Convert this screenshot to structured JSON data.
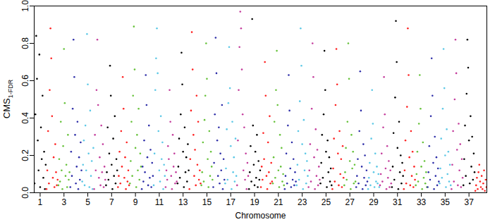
{
  "chart_data": {
    "type": "scatter",
    "x_label": "Chromosome",
    "y_label": "CMS",
    "y_label_subscript": "1-FDR",
    "ylim": [
      0,
      1
    ],
    "yticks": [
      {
        "value": 0,
        "label": "0.0"
      },
      {
        "value": 0.2,
        "label": "0.2"
      },
      {
        "value": 0.4,
        "label": "0.4"
      },
      {
        "value": 0.6,
        "label": "0.6"
      },
      {
        "value": 0.8,
        "label": "0.8"
      },
      {
        "value": 1,
        "label": "1.0"
      }
    ],
    "grid": false,
    "marker": "dot",
    "categories": [
      "1",
      null,
      "3",
      null,
      "5",
      null,
      "7",
      null,
      "9",
      null,
      "11",
      null,
      "13",
      null,
      "15",
      null,
      "17",
      null,
      "19",
      null,
      "21",
      null,
      "23",
      null,
      "25",
      null,
      "27",
      null,
      "29",
      null,
      "31",
      null,
      "33",
      null,
      "35",
      null,
      "37",
      null
    ],
    "colors": [
      "#000000",
      "#ff2020",
      "#66c23a",
      "#2e2ea8",
      "#5cc8e6",
      "#c43c9c",
      "#000000",
      "#ff2020",
      "#66c23a",
      "#2e2ea8",
      "#5cc8e6",
      "#c43c9c",
      "#000000",
      "#ff2020",
      "#66c23a",
      "#2e2ea8",
      "#5cc8e6",
      "#c43c9c",
      "#000000",
      "#ff2020",
      "#66c23a",
      "#2e2ea8",
      "#5cc8e6",
      "#c43c9c",
      "#000000",
      "#ff2020",
      "#66c23a",
      "#2e2ea8",
      "#5cc8e6",
      "#c43c9c",
      "#000000",
      "#ff2020",
      "#66c23a",
      "#2e2ea8",
      "#5cc8e6",
      "#c43c9c",
      "#000000",
      "#ff2020"
    ],
    "values": [
      [
        0.05,
        0.42,
        0.84,
        0.61,
        0.28,
        0.12,
        0.74,
        0.03,
        0.35,
        0.18,
        0.52,
        0.08,
        0.22,
        0.02,
        0.15
      ],
      [
        0.02,
        0.12,
        0.33,
        0.05,
        0.55,
        0.88,
        0.72,
        0.41,
        0.08,
        0.19,
        0.03,
        0.26,
        0.11,
        0.04,
        0.07
      ],
      [
        0.04,
        0.18,
        0.06,
        0.38,
        0.12,
        0.02,
        0.25,
        0.77,
        0.48,
        0.09,
        0.15,
        0.03,
        0.31,
        0.07,
        0.11
      ],
      [
        0.03,
        0.22,
        0.09,
        0.45,
        0.82,
        0.62,
        0.31,
        0.05,
        0.14,
        0.38,
        0.02,
        0.19,
        0.07,
        0.27,
        0.12
      ],
      [
        0.06,
        0.15,
        0.28,
        0.04,
        0.36,
        0.12,
        0.85,
        0.58,
        0.21,
        0.03,
        0.44,
        0.09,
        0.17,
        0.02,
        0.24
      ],
      [
        0.02,
        0.31,
        0.12,
        0.55,
        0.82,
        0.47,
        0.08,
        0.19,
        0.04,
        0.36,
        0.11,
        0.26,
        0.03,
        0.14,
        0.07
      ],
      [
        0.04,
        0.11,
        0.35,
        0.07,
        0.21,
        0.68,
        0.52,
        0.15,
        0.02,
        0.29,
        0.09,
        0.41,
        0.05,
        0.18,
        0.12
      ],
      [
        0.03,
        0.09,
        0.22,
        0.05,
        0.33,
        0.14,
        0.62,
        0.45,
        0.08,
        0.19,
        0.02,
        0.27,
        0.06,
        0.12,
        0.04
      ],
      [
        0.05,
        0.17,
        0.38,
        0.09,
        0.52,
        0.89,
        0.66,
        0.24,
        0.03,
        0.31,
        0.12,
        0.45,
        0.07,
        0.21,
        0.14
      ],
      [
        0.02,
        0.14,
        0.06,
        0.28,
        0.11,
        0.63,
        0.47,
        0.19,
        0.04,
        0.36,
        0.08,
        0.23,
        0.03,
        0.16,
        0.09
      ],
      [
        0.04,
        0.21,
        0.55,
        0.72,
        0.88,
        0.64,
        0.33,
        0.12,
        0.06,
        0.41,
        0.18,
        0.27,
        0.02,
        0.15,
        0.09
      ],
      [
        0.03,
        0.12,
        0.07,
        0.25,
        0.18,
        0.55,
        0.38,
        0.09,
        0.02,
        0.31,
        0.14,
        0.21,
        0.05,
        0.11,
        0.06
      ],
      [
        0.05,
        0.14,
        0.29,
        0.08,
        0.42,
        0.75,
        0.58,
        0.22,
        0.03,
        0.35,
        0.11,
        0.19,
        0.06,
        0.26,
        0.12
      ],
      [
        0.02,
        0.18,
        0.44,
        0.86,
        0.66,
        0.31,
        0.09,
        0.23,
        0.04,
        0.52,
        0.15,
        0.38,
        0.07,
        0.12,
        0.05
      ],
      [
        0.04,
        0.11,
        0.27,
        0.06,
        0.39,
        0.52,
        0.8,
        0.61,
        0.18,
        0.03,
        0.33,
        0.09,
        0.22,
        0.14,
        0.07
      ],
      [
        0.03,
        0.16,
        0.42,
        0.83,
        0.64,
        0.28,
        0.09,
        0.35,
        0.05,
        0.21,
        0.12,
        0.47,
        0.02,
        0.18,
        0.07
      ],
      [
        0.05,
        0.13,
        0.34,
        0.07,
        0.48,
        0.78,
        0.56,
        0.25,
        0.02,
        0.38,
        0.11,
        0.19,
        0.06,
        0.29,
        0.09
      ],
      [
        0.04,
        0.28,
        0.55,
        0.78,
        0.97,
        0.88,
        0.66,
        0.42,
        0.12,
        0.35,
        0.07,
        0.21,
        0.02,
        0.16,
        0.09
      ],
      [
        0.02,
        0.11,
        0.25,
        0.06,
        0.93,
        0.36,
        0.15,
        0.04,
        0.22,
        0.08,
        0.31,
        0.03,
        0.17,
        0.07,
        0.12
      ],
      [
        0.03,
        0.14,
        0.07,
        0.32,
        0.18,
        0.7,
        0.52,
        0.09,
        0.02,
        0.27,
        0.11,
        0.41,
        0.05,
        0.16,
        0.06
      ],
      [
        0.05,
        0.19,
        0.38,
        0.08,
        0.55,
        0.76,
        0.47,
        0.12,
        0.03,
        0.31,
        0.14,
        0.24,
        0.06,
        0.1,
        0.04
      ],
      [
        0.02,
        0.09,
        0.21,
        0.05,
        0.36,
        0.63,
        0.44,
        0.13,
        0.03,
        0.27,
        0.07,
        0.18,
        0.04,
        0.11,
        0.06
      ],
      [
        0.04,
        0.15,
        0.33,
        0.07,
        0.49,
        0.88,
        0.68,
        0.26,
        0.02,
        0.39,
        0.12,
        0.21,
        0.05,
        0.17,
        0.09
      ],
      [
        0.03,
        0.12,
        0.26,
        0.06,
        0.45,
        0.8,
        0.62,
        0.19,
        0.02,
        0.34,
        0.09,
        0.23,
        0.04,
        0.14,
        0.07
      ],
      [
        0.05,
        0.16,
        0.31,
        0.08,
        0.42,
        0.76,
        0.55,
        0.22,
        0.03,
        0.28,
        0.11,
        0.19,
        0.06,
        0.13,
        0.04
      ],
      [
        0.02,
        0.13,
        0.29,
        0.06,
        0.47,
        0.77,
        0.58,
        0.21,
        0.04,
        0.33,
        0.1,
        0.18,
        0.03,
        0.25,
        0.08
      ],
      [
        0.04,
        0.11,
        0.24,
        0.07,
        0.38,
        0.8,
        0.61,
        0.17,
        0.02,
        0.31,
        0.13,
        0.22,
        0.05,
        0.15,
        0.06
      ],
      [
        0.03,
        0.09,
        0.18,
        0.05,
        0.33,
        0.65,
        0.44,
        0.14,
        0.02,
        0.26,
        0.08,
        0.2,
        0.04,
        0.12,
        0.06
      ],
      [
        0.02,
        0.08,
        0.16,
        0.04,
        0.29,
        0.55,
        0.37,
        0.11,
        0.03,
        0.21,
        0.06,
        0.14,
        0.05,
        0.1,
        0.03
      ],
      [
        0.04,
        0.1,
        0.21,
        0.06,
        0.35,
        0.62,
        0.42,
        0.13,
        0.02,
        0.25,
        0.08,
        0.17,
        0.03,
        0.12,
        0.05
      ],
      [
        0.03,
        0.14,
        0.32,
        0.07,
        0.51,
        0.92,
        0.7,
        0.24,
        0.02,
        0.38,
        0.11,
        0.2,
        0.05,
        0.16,
        0.09
      ],
      [
        0.02,
        0.12,
        0.28,
        0.05,
        0.46,
        0.88,
        0.63,
        0.19,
        0.04,
        0.33,
        0.09,
        0.22,
        0.03,
        0.14,
        0.07
      ],
      [
        0.04,
        0.1,
        0.22,
        0.06,
        0.37,
        0.63,
        0.45,
        0.14,
        0.02,
        0.27,
        0.08,
        0.17,
        0.05,
        0.11,
        0.03
      ],
      [
        0.03,
        0.11,
        0.25,
        0.07,
        0.41,
        0.72,
        0.52,
        0.16,
        0.02,
        0.3,
        0.09,
        0.19,
        0.04,
        0.13,
        0.06
      ],
      [
        0.05,
        0.13,
        0.29,
        0.08,
        0.45,
        0.77,
        0.56,
        0.2,
        0.03,
        0.34,
        0.1,
        0.22,
        0.06,
        0.15,
        0.04
      ],
      [
        0.02,
        0.15,
        0.33,
        0.06,
        0.5,
        0.82,
        0.64,
        0.23,
        0.04,
        0.37,
        0.12,
        0.26,
        0.03,
        0.18,
        0.08
      ],
      [
        0.04,
        0.18,
        0.36,
        0.09,
        0.53,
        0.82,
        0.67,
        0.28,
        0.05,
        0.41,
        0.14,
        0.3,
        0.07,
        0.21,
        0.11
      ],
      [
        0.01,
        0.04,
        0.08,
        0.02,
        0.11,
        0.15,
        0.06,
        0.03,
        0.09,
        0.02,
        0.05,
        0.12,
        0.01,
        0.07,
        0.03
      ]
    ]
  }
}
